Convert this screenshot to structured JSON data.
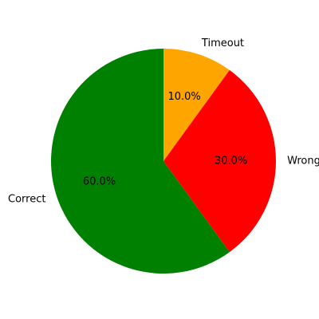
{
  "chart_data": {
    "type": "pie",
    "title": "",
    "start_angle_deg": 90,
    "direction": "clockwise",
    "slices": [
      {
        "label": "Timeout",
        "value": 10.0,
        "pct_text": "10.0%",
        "color": "#ffa500"
      },
      {
        "label": "Wrong",
        "value": 30.0,
        "pct_text": "30.0%",
        "color": "#ff0000"
      },
      {
        "label": "Correct",
        "value": 60.0,
        "pct_text": "60.0%",
        "color": "#008000"
      }
    ]
  }
}
